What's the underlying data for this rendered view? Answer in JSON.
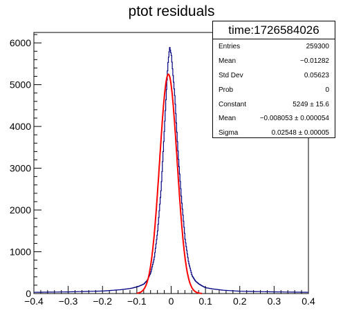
{
  "chart_data": {
    "type": "line",
    "title": "ptot residuals",
    "xlabel": "",
    "ylabel": "",
    "xlim": [
      -0.4,
      0.4
    ],
    "ylim": [
      0,
      6250
    ],
    "x_ticks": [
      "-0.4",
      "-0.3",
      "-0.2",
      "-0.1",
      "0",
      "0.1",
      "0.2",
      "0.3",
      "0.4"
    ],
    "y_ticks": [
      "0",
      "1000",
      "2000",
      "3000",
      "4000",
      "5000",
      "6000"
    ],
    "grid": false,
    "series": [
      {
        "name": "",
        "color": "#000080",
        "style": "histogram",
        "x": [
          -0.4,
          -0.3,
          -0.2,
          -0.15,
          -0.12,
          -0.1,
          -0.09,
          -0.08,
          -0.07,
          -0.06,
          -0.05,
          -0.04,
          -0.03,
          -0.02,
          -0.015,
          -0.01,
          -0.005,
          0.0,
          0.005,
          0.01,
          0.02,
          0.03,
          0.04,
          0.05,
          0.06,
          0.07,
          0.08,
          0.09,
          0.1,
          0.12,
          0.15,
          0.2,
          0.3,
          0.4
        ],
        "y": [
          30,
          40,
          60,
          90,
          120,
          160,
          190,
          230,
          320,
          500,
          850,
          1500,
          2500,
          4000,
          4800,
          5500,
          5900,
          5700,
          5200,
          4700,
          3300,
          2200,
          1300,
          750,
          430,
          300,
          230,
          180,
          140,
          110,
          80,
          55,
          40,
          30
        ]
      },
      {
        "name": "",
        "color": "#ff0000",
        "style": "gaussian-fit",
        "constant": 5249,
        "mean": -0.008053,
        "sigma": 0.02548,
        "x_range": [
          -0.1,
          0.09
        ]
      }
    ]
  },
  "stats_box": {
    "title": "time:1726584026",
    "rows": [
      {
        "key": "Entries",
        "value": "259300"
      },
      {
        "key": "Mean",
        "value": "−0.01282"
      },
      {
        "key": "Std Dev",
        "value": "0.05623"
      },
      {
        "key": "Prob",
        "value": "0"
      },
      {
        "key": "Constant",
        "value": "5249 ± 15.6"
      },
      {
        "key": "Mean",
        "value": "−0.008053 ± 0.000054"
      },
      {
        "key": "Sigma",
        "value": "0.02548 ± 0.00005"
      }
    ]
  }
}
